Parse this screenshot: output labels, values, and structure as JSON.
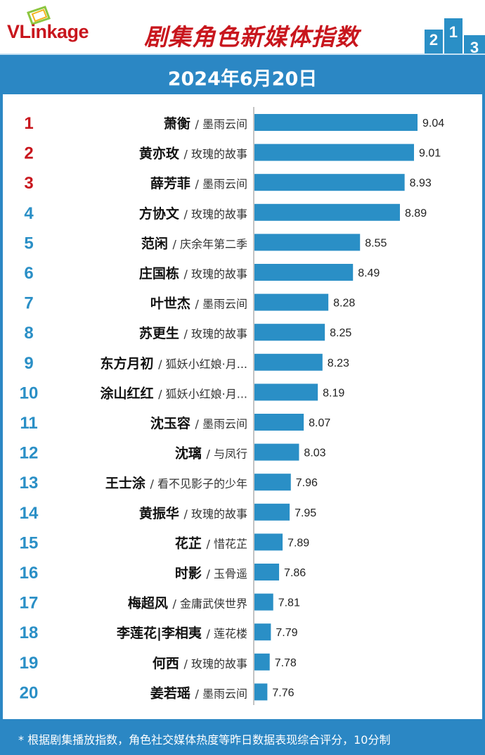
{
  "header": {
    "logo_text": "VLinkage",
    "title": "剧集角色新媒体指数",
    "podium": [
      "2",
      "1",
      "3"
    ]
  },
  "date": "2024年6月20日",
  "chart_data": {
    "type": "bar",
    "orientation": "horizontal",
    "title": "剧集角色新媒体指数",
    "subtitle": "2024年6月20日",
    "ranks": [
      "1",
      "2",
      "3",
      "4",
      "5",
      "6",
      "7",
      "8",
      "9",
      "10",
      "11",
      "12",
      "13",
      "14",
      "15",
      "16",
      "17",
      "18",
      "19",
      "20"
    ],
    "roles": [
      "萧衡",
      "黄亦玫",
      "薛芳菲",
      "方协文",
      "范闲",
      "庄国栋",
      "叶世杰",
      "苏更生",
      "东方月初",
      "涂山红红",
      "沈玉容",
      "沈璃",
      "王士涂",
      "黄振华",
      "花芷",
      "时影",
      "梅超风",
      "李莲花|李相夷",
      "何西",
      "姜若瑶"
    ],
    "shows": [
      "/ 墨雨云间",
      "/ 玫瑰的故事",
      "/ 墨雨云间",
      "/ 玫瑰的故事",
      "/ 庆余年第二季",
      "/ 玫瑰的故事",
      "/ 墨雨云间",
      "/ 玫瑰的故事",
      "/ 狐妖小红娘·月...",
      "/ 狐妖小红娘·月...",
      "/ 墨雨云间",
      "/ 与凤行",
      "/ 看不见影子的少年",
      "/ 玫瑰的故事",
      "/ 惜花芷",
      "/ 玉骨遥",
      "/ 金庸武侠世界",
      "/ 莲花楼",
      "/ 玫瑰的故事",
      "/ 墨雨云间"
    ],
    "values": [
      9.04,
      9.01,
      8.93,
      8.89,
      8.55,
      8.49,
      8.28,
      8.25,
      8.23,
      8.19,
      8.07,
      8.03,
      7.96,
      7.95,
      7.89,
      7.86,
      7.81,
      7.79,
      7.78,
      7.76
    ],
    "xlim": [
      7.65,
      9.04
    ]
  },
  "colors": {
    "brand_red": "#c8161d",
    "bar": "#2a8fc6",
    "rank_top": "#c8161d",
    "rank_rest": "#2a8fc6",
    "accent_blue": "#2b87c4"
  },
  "footer": {
    "note": "* 根据剧集播放指数，角色社交媒体热度等昨日数据表现综合评分，10分制"
  }
}
